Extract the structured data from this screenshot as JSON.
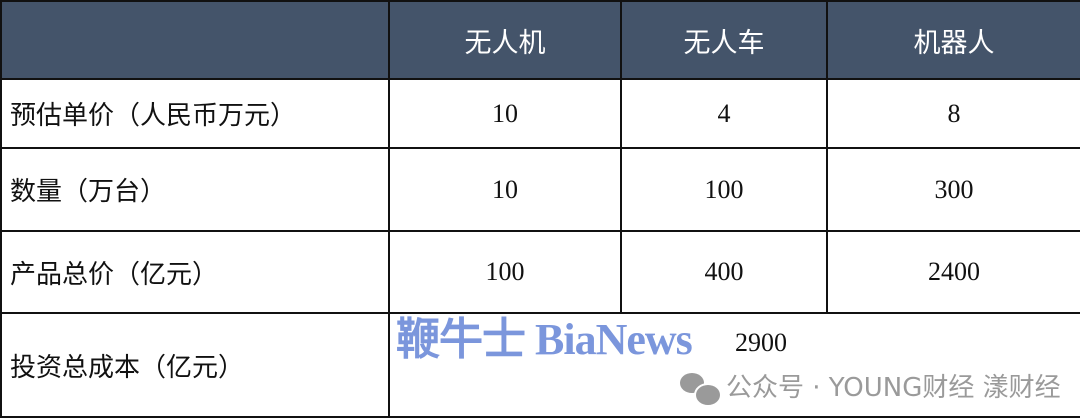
{
  "table": {
    "headers": [
      "",
      "无人机",
      "无人车",
      "机器人"
    ],
    "rows": [
      {
        "label": "预估单价（人民币万元）",
        "values": [
          "10",
          "4",
          "8"
        ]
      },
      {
        "label": "数量（万台）",
        "values": [
          "10",
          "100",
          "300"
        ]
      },
      {
        "label": "产品总价（亿元）",
        "values": [
          "100",
          "400",
          "2400"
        ]
      }
    ],
    "total": {
      "label": "投资总成本（亿元）",
      "value": "2900"
    }
  },
  "watermarks": {
    "brand": "鞭牛士 BiaNews",
    "wechat": "公众号 · YOUNG财经 漾财经"
  },
  "colors": {
    "header_bg": "#44546a",
    "brand_watermark": "#7b96dc"
  }
}
